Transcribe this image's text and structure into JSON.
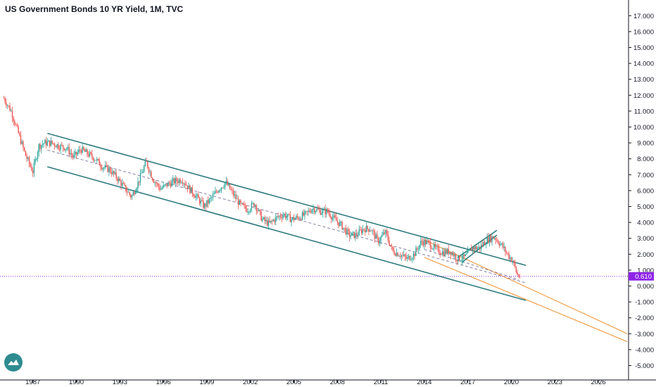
{
  "title": "US Government Bonds 10 YR Yield, 1M, TVC",
  "colors": {
    "up": "#26a69a",
    "down": "#ef5350",
    "channel": "#2e7b7f",
    "projection": "#f0a04b",
    "midline": "#7b6e9b",
    "price_line": "#8e24e8"
  },
  "chart_data": {
    "type": "candlestick",
    "title": "US Government Bonds 10 YR Yield, 1M, TVC",
    "ylim": [
      -5.5,
      17.5
    ],
    "xlim": [
      1985.0,
      2028.0
    ],
    "y_ticks": [
      "17.000",
      "16.000",
      "15.000",
      "14.000",
      "13.000",
      "12.000",
      "11.000",
      "10.000",
      "9.000",
      "8.000",
      "7.000",
      "6.000",
      "5.000",
      "4.000",
      "3.000",
      "2.000",
      "1.000",
      "0.000",
      "-1.000",
      "-2.000",
      "-3.000",
      "-4.000",
      "-5.000"
    ],
    "x_ticks": [
      "1987",
      "1990",
      "1993",
      "1996",
      "1999",
      "2002",
      "2005",
      "2008",
      "2011",
      "2014",
      "2017",
      "2020",
      "2023",
      "2026"
    ],
    "x_tick_values": [
      1987,
      1990,
      1993,
      1996,
      1999,
      2002,
      2005,
      2008,
      2011,
      2014,
      2017,
      2020,
      2023,
      2026
    ],
    "current_price": 0.61,
    "current_price_label": "0.610",
    "series": [
      {
        "x": [
          1985.0,
          1985.5,
          1986.0,
          1986.5,
          1987.0,
          1987.4,
          1987.8,
          1988.3,
          1988.8,
          1989.3,
          1989.8,
          1990.3,
          1990.8,
          1991.3,
          1991.8,
          1992.3,
          1992.8,
          1993.3,
          1993.8,
          1994.3,
          1994.8,
          1995.3,
          1995.8,
          1996.3,
          1996.8,
          1997.3,
          1997.8,
          1998.3,
          1998.8,
          1999.3,
          1999.8,
          2000.3,
          2000.8,
          2001.3,
          2001.8,
          2002.3,
          2002.8,
          2003.3,
          2003.8,
          2004.3,
          2004.8,
          2005.3,
          2005.8,
          2006.3,
          2006.8,
          2007.3,
          2007.8,
          2008.3,
          2008.8,
          2009.3,
          2009.8,
          2010.3,
          2010.8,
          2011.3,
          2011.8,
          2012.3,
          2012.8,
          2013.3,
          2013.8,
          2014.3,
          2014.8,
          2015.3,
          2015.8,
          2016.3,
          2016.8,
          2017.3,
          2017.8,
          2018.3,
          2018.8,
          2019.3,
          2019.8,
          2020.1,
          2020.4,
          2020.6
        ],
        "y": [
          11.8,
          11.0,
          9.6,
          8.2,
          7.2,
          8.8,
          9.0,
          9.0,
          8.8,
          8.7,
          8.1,
          8.6,
          8.3,
          8.0,
          7.5,
          7.3,
          6.8,
          6.2,
          5.6,
          6.6,
          7.8,
          6.7,
          6.1,
          6.4,
          6.6,
          6.7,
          6.1,
          5.6,
          5.0,
          5.5,
          6.1,
          6.5,
          5.8,
          5.1,
          4.8,
          5.2,
          4.2,
          3.9,
          4.3,
          4.5,
          4.2,
          4.3,
          4.5,
          4.9,
          4.7,
          4.7,
          4.2,
          3.8,
          3.2,
          3.2,
          3.6,
          3.6,
          2.8,
          3.4,
          2.2,
          2.0,
          1.7,
          2.0,
          2.8,
          2.7,
          2.3,
          2.1,
          2.2,
          1.7,
          1.8,
          2.4,
          2.4,
          2.9,
          3.1,
          2.6,
          1.9,
          1.6,
          0.7,
          0.61
        ]
      }
    ],
    "annotations": [
      {
        "type": "channel-upper",
        "x": [
          1988.0,
          2021.0
        ],
        "y": [
          9.6,
          1.3
        ]
      },
      {
        "type": "channel-lower",
        "x": [
          1988.0,
          2021.0
        ],
        "y": [
          7.5,
          -0.9
        ]
      },
      {
        "type": "channel-mid",
        "x": [
          1988.0,
          2021.0
        ],
        "y": [
          8.55,
          0.2
        ]
      },
      {
        "type": "projection-upper",
        "x": [
          2014.0,
          2028.0
        ],
        "y": [
          2.9,
          -3.0
        ]
      },
      {
        "type": "projection-lower",
        "x": [
          2014.0,
          2028.0
        ],
        "y": [
          1.8,
          -3.5
        ]
      },
      {
        "type": "projection-mid",
        "x": [
          2014.0,
          2020.5
        ],
        "y": [
          2.3,
          0.4
        ]
      },
      {
        "type": "rising-upper",
        "x": [
          2016.3,
          2019.0
        ],
        "y": [
          1.8,
          3.5
        ]
      },
      {
        "type": "rising-lower",
        "x": [
          2016.6,
          2019.0
        ],
        "y": [
          1.5,
          3.2
        ]
      }
    ]
  }
}
